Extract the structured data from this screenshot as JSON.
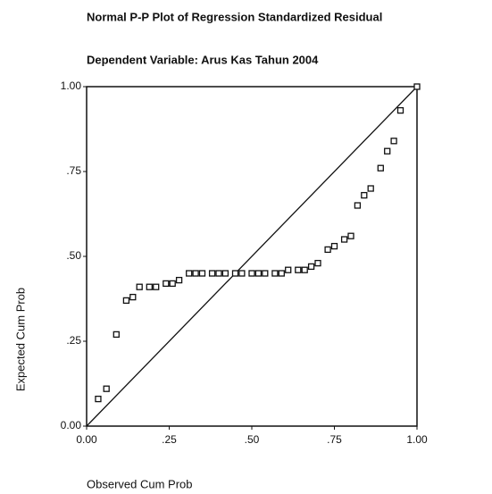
{
  "chart_data": {
    "type": "scatter",
    "title": "Normal P-P Plot of Regression Standardized Residual",
    "subtitle": "Dependent Variable: Arus Kas Tahun 2004",
    "x_label": "Observed Cum Prob",
    "y_label": "Expected Cum Prob",
    "x": [
      0.035,
      0.06,
      0.09,
      0.12,
      0.14,
      0.16,
      0.19,
      0.21,
      0.24,
      0.26,
      0.28,
      0.31,
      0.33,
      0.35,
      0.38,
      0.4,
      0.42,
      0.45,
      0.47,
      0.5,
      0.52,
      0.54,
      0.57,
      0.59,
      0.61,
      0.64,
      0.66,
      0.68,
      0.7,
      0.73,
      0.75,
      0.78,
      0.8,
      0.82,
      0.84,
      0.86,
      0.89,
      0.91,
      0.93,
      0.95,
      1.0
    ],
    "values": [
      0.08,
      0.11,
      0.27,
      0.37,
      0.38,
      0.41,
      0.41,
      0.41,
      0.42,
      0.42,
      0.43,
      0.45,
      0.45,
      0.45,
      0.45,
      0.45,
      0.45,
      0.45,
      0.45,
      0.45,
      0.45,
      0.45,
      0.45,
      0.45,
      0.46,
      0.46,
      0.46,
      0.47,
      0.48,
      0.52,
      0.53,
      0.55,
      0.56,
      0.65,
      0.68,
      0.7,
      0.76,
      0.81,
      0.84,
      0.93,
      1.0
    ],
    "color": "#111111",
    "xlim": [
      0,
      1
    ],
    "ylim": [
      0,
      1
    ],
    "xticks": [
      {
        "value": 0,
        "label": "0.00"
      },
      {
        "value": 0.25,
        "label": ".25"
      },
      {
        "value": 0.5,
        "label": ".50"
      },
      {
        "value": 0.75,
        "label": ".75"
      },
      {
        "value": 1,
        "label": "1.00"
      }
    ],
    "yticks": [
      {
        "value": 0,
        "label": "0.00"
      },
      {
        "value": 0.25,
        "label": ".25"
      },
      {
        "value": 0.5,
        "label": ".50"
      },
      {
        "value": 0.75,
        "label": ".75"
      },
      {
        "value": 1,
        "label": "1.00"
      }
    ]
  }
}
